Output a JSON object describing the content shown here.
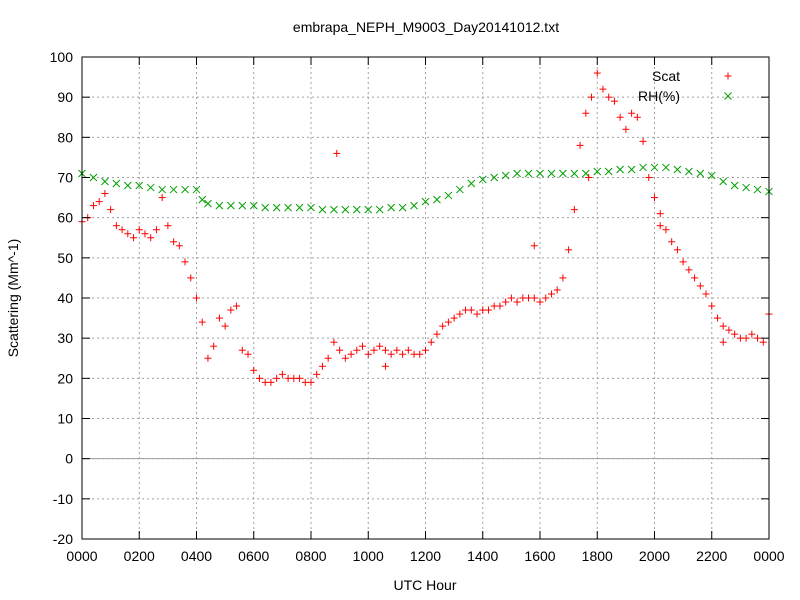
{
  "chart_data": {
    "type": "scatter",
    "title": "embrapa_NEPH_M9003_Day20141012.txt",
    "xlabel": "UTC Hour",
    "ylabel": "Scattering (Mm^-1)",
    "xlim": [
      0,
      2400
    ],
    "ylim": [
      -20,
      100
    ],
    "grid": true,
    "legend_position": "top-right",
    "x_tick_labels": [
      "0000",
      "0200",
      "0400",
      "0600",
      "0800",
      "1000",
      "1200",
      "1400",
      "1600",
      "1800",
      "2000",
      "2200",
      "0000"
    ],
    "y_ticks": [
      -20,
      -10,
      0,
      10,
      20,
      30,
      40,
      50,
      60,
      70,
      80,
      90,
      100
    ],
    "series": [
      {
        "name": "Scat",
        "marker": "plus",
        "color": "#ff0000",
        "points": [
          [
            0,
            59
          ],
          [
            20,
            60
          ],
          [
            40,
            63
          ],
          [
            60,
            64
          ],
          [
            80,
            66
          ],
          [
            100,
            62
          ],
          [
            120,
            58
          ],
          [
            140,
            57
          ],
          [
            160,
            56
          ],
          [
            180,
            55
          ],
          [
            200,
            57
          ],
          [
            220,
            56
          ],
          [
            240,
            55
          ],
          [
            260,
            57
          ],
          [
            280,
            65
          ],
          [
            300,
            58
          ],
          [
            320,
            54
          ],
          [
            340,
            53
          ],
          [
            360,
            49
          ],
          [
            380,
            45
          ],
          [
            400,
            40
          ],
          [
            420,
            34
          ],
          [
            440,
            25
          ],
          [
            460,
            28
          ],
          [
            480,
            35
          ],
          [
            500,
            33
          ],
          [
            520,
            37
          ],
          [
            540,
            38
          ],
          [
            560,
            27
          ],
          [
            580,
            26
          ],
          [
            600,
            22
          ],
          [
            620,
            20
          ],
          [
            640,
            19
          ],
          [
            660,
            19
          ],
          [
            680,
            20
          ],
          [
            700,
            21
          ],
          [
            720,
            20
          ],
          [
            740,
            20
          ],
          [
            760,
            20
          ],
          [
            780,
            19
          ],
          [
            800,
            19
          ],
          [
            820,
            21
          ],
          [
            840,
            23
          ],
          [
            860,
            25
          ],
          [
            880,
            29
          ],
          [
            900,
            27
          ],
          [
            920,
            25
          ],
          [
            940,
            26
          ],
          [
            960,
            27
          ],
          [
            980,
            28
          ],
          [
            1000,
            26
          ],
          [
            1020,
            27
          ],
          [
            1040,
            28
          ],
          [
            1060,
            27
          ],
          [
            1080,
            26
          ],
          [
            1100,
            27
          ],
          [
            1120,
            26
          ],
          [
            1140,
            27
          ],
          [
            1160,
            26
          ],
          [
            1180,
            26
          ],
          [
            1200,
            27
          ],
          [
            1220,
            29
          ],
          [
            1240,
            31
          ],
          [
            1260,
            33
          ],
          [
            1280,
            34
          ],
          [
            1300,
            35
          ],
          [
            1320,
            36
          ],
          [
            1340,
            37
          ],
          [
            1360,
            37
          ],
          [
            1380,
            36
          ],
          [
            1400,
            37
          ],
          [
            1420,
            37
          ],
          [
            1440,
            38
          ],
          [
            1460,
            38
          ],
          [
            1480,
            39
          ],
          [
            1500,
            40
          ],
          [
            1520,
            39
          ],
          [
            1540,
            40
          ],
          [
            1560,
            40
          ],
          [
            1580,
            40
          ],
          [
            1600,
            39
          ],
          [
            1620,
            40
          ],
          [
            1640,
            41
          ],
          [
            1660,
            42
          ],
          [
            1680,
            45
          ],
          [
            1700,
            52
          ],
          [
            1720,
            62
          ],
          [
            1740,
            78
          ],
          [
            1760,
            86
          ],
          [
            1780,
            90
          ],
          [
            1800,
            96
          ],
          [
            1820,
            92
          ],
          [
            1840,
            90
          ],
          [
            1860,
            89
          ],
          [
            1880,
            85
          ],
          [
            1900,
            82
          ],
          [
            1920,
            86
          ],
          [
            1940,
            85
          ],
          [
            1960,
            79
          ],
          [
            1980,
            70
          ],
          [
            2000,
            65
          ],
          [
            2020,
            61
          ],
          [
            2040,
            57
          ],
          [
            2060,
            54
          ],
          [
            2080,
            52
          ],
          [
            2100,
            49
          ],
          [
            2120,
            47
          ],
          [
            2140,
            45
          ],
          [
            2160,
            43
          ],
          [
            2180,
            41
          ],
          [
            2200,
            38
          ],
          [
            2220,
            35
          ],
          [
            2240,
            33
          ],
          [
            2260,
            32
          ],
          [
            2280,
            31
          ],
          [
            2300,
            30
          ],
          [
            2320,
            30
          ],
          [
            2340,
            31
          ],
          [
            2360,
            30
          ],
          [
            2380,
            29
          ],
          [
            2400,
            36
          ],
          [
            890,
            76
          ],
          [
            1580,
            53
          ],
          [
            1770,
            70
          ],
          [
            2020,
            58
          ],
          [
            2240,
            29
          ],
          [
            1060,
            23
          ]
        ]
      },
      {
        "name": "RH(%)",
        "marker": "x",
        "color": "#00a000",
        "points": [
          [
            0,
            71
          ],
          [
            40,
            70
          ],
          [
            80,
            69
          ],
          [
            120,
            68.5
          ],
          [
            160,
            68
          ],
          [
            200,
            68
          ],
          [
            240,
            67.5
          ],
          [
            280,
            67
          ],
          [
            320,
            67
          ],
          [
            360,
            67
          ],
          [
            400,
            67
          ],
          [
            420,
            64.5
          ],
          [
            440,
            63.5
          ],
          [
            480,
            63
          ],
          [
            520,
            63
          ],
          [
            560,
            63
          ],
          [
            600,
            63
          ],
          [
            640,
            62.5
          ],
          [
            680,
            62.5
          ],
          [
            720,
            62.5
          ],
          [
            760,
            62.5
          ],
          [
            800,
            62.5
          ],
          [
            840,
            62
          ],
          [
            880,
            62
          ],
          [
            920,
            62
          ],
          [
            960,
            62
          ],
          [
            1000,
            62
          ],
          [
            1040,
            62
          ],
          [
            1080,
            62.5
          ],
          [
            1120,
            62.5
          ],
          [
            1160,
            63
          ],
          [
            1200,
            64
          ],
          [
            1240,
            64.5
          ],
          [
            1280,
            65.5
          ],
          [
            1320,
            67
          ],
          [
            1360,
            68.5
          ],
          [
            1400,
            69.5
          ],
          [
            1440,
            70
          ],
          [
            1480,
            70.5
          ],
          [
            1520,
            71
          ],
          [
            1560,
            71
          ],
          [
            1600,
            71
          ],
          [
            1640,
            71
          ],
          [
            1680,
            71
          ],
          [
            1720,
            71
          ],
          [
            1760,
            71
          ],
          [
            1800,
            71.5
          ],
          [
            1840,
            71.5
          ],
          [
            1880,
            72
          ],
          [
            1920,
            72
          ],
          [
            1960,
            72.5
          ],
          [
            2000,
            72.5
          ],
          [
            2040,
            72.5
          ],
          [
            2080,
            72
          ],
          [
            2120,
            71.5
          ],
          [
            2160,
            71
          ],
          [
            2200,
            70.5
          ],
          [
            2240,
            69
          ],
          [
            2280,
            68
          ],
          [
            2320,
            67.5
          ],
          [
            2360,
            67
          ],
          [
            2400,
            66.5
          ]
        ]
      }
    ]
  }
}
